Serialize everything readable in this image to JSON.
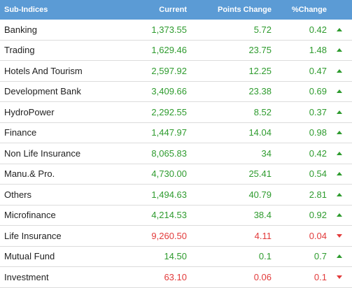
{
  "header": {
    "sub_indices": "Sub-Indices",
    "current": "Current",
    "points_change": "Points Change",
    "pct_change": "%Change"
  },
  "rows": [
    {
      "name": "Banking",
      "current": "1,373.55",
      "points": "5.72",
      "pct": "0.42",
      "dir": "up"
    },
    {
      "name": "Trading",
      "current": "1,629.46",
      "points": "23.75",
      "pct": "1.48",
      "dir": "up"
    },
    {
      "name": "Hotels And Tourism",
      "current": "2,597.92",
      "points": "12.25",
      "pct": "0.47",
      "dir": "up"
    },
    {
      "name": "Development Bank",
      "current": "3,409.66",
      "points": "23.38",
      "pct": "0.69",
      "dir": "up"
    },
    {
      "name": "HydroPower",
      "current": "2,292.55",
      "points": "8.52",
      "pct": "0.37",
      "dir": "up"
    },
    {
      "name": "Finance",
      "current": "1,447.97",
      "points": "14.04",
      "pct": "0.98",
      "dir": "up"
    },
    {
      "name": "Non Life Insurance",
      "current": "8,065.83",
      "points": "34",
      "pct": "0.42",
      "dir": "up"
    },
    {
      "name": "Manu.& Pro.",
      "current": "4,730.00",
      "points": "25.41",
      "pct": "0.54",
      "dir": "up"
    },
    {
      "name": "Others",
      "current": "1,494.63",
      "points": "40.79",
      "pct": "2.81",
      "dir": "up"
    },
    {
      "name": "Microfinance",
      "current": "4,214.53",
      "points": "38.4",
      "pct": "0.92",
      "dir": "up"
    },
    {
      "name": "Life Insurance",
      "current": "9,260.50",
      "points": "4.11",
      "pct": "0.04",
      "dir": "down"
    },
    {
      "name": "Mutual Fund",
      "current": "14.50",
      "points": "0.1",
      "pct": "0.7",
      "dir": "up"
    },
    {
      "name": "Investment",
      "current": "63.10",
      "points": "0.06",
      "pct": "0.1",
      "dir": "down"
    }
  ],
  "colors": {
    "header_bg": "#5b9bd5",
    "up": "#2e9b2e",
    "down": "#e23a3a"
  }
}
